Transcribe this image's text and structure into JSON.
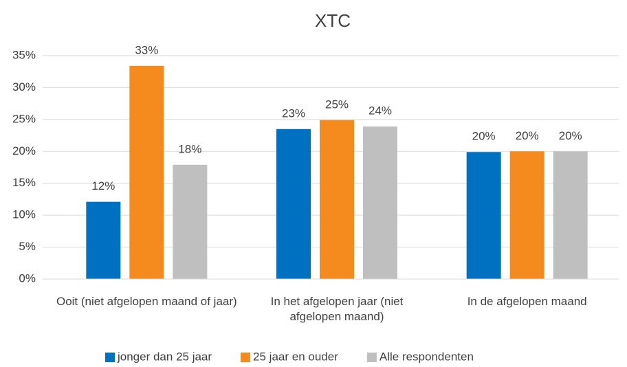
{
  "chart_data": {
    "type": "bar",
    "title": "XTC",
    "categories": [
      "Ooit (niet afgelopen maand of jaar)",
      "In het afgelopen jaar (niet afgelopen maand)",
      "In de afgelopen maand"
    ],
    "series": [
      {
        "name": "jonger dan 25 jaar",
        "color": "#0070c0",
        "values": [
          12.1,
          23.5,
          19.9
        ],
        "value_labels": [
          "12%",
          "23%",
          "20%"
        ]
      },
      {
        "name": "25 jaar en ouder",
        "color": "#f58a1f",
        "values": [
          33.4,
          24.9,
          20.0
        ],
        "value_labels": [
          "33%",
          "25%",
          "20%"
        ]
      },
      {
        "name": "Alle respondenten",
        "color": "#bfbfbf",
        "values": [
          17.9,
          23.9,
          20.0
        ],
        "value_labels": [
          "18%",
          "24%",
          "20%"
        ]
      }
    ],
    "ylim": [
      0,
      35
    ],
    "yticks": [
      {
        "value": 0,
        "label": "0%"
      },
      {
        "value": 5,
        "label": "5%"
      },
      {
        "value": 10,
        "label": "10%"
      },
      {
        "value": 15,
        "label": "15%"
      },
      {
        "value": 20,
        "label": "20%"
      },
      {
        "value": 25,
        "label": "25%"
      },
      {
        "value": 30,
        "label": "30%"
      },
      {
        "value": 35,
        "label": "35%"
      }
    ],
    "grid": true,
    "legend": "bottom"
  }
}
